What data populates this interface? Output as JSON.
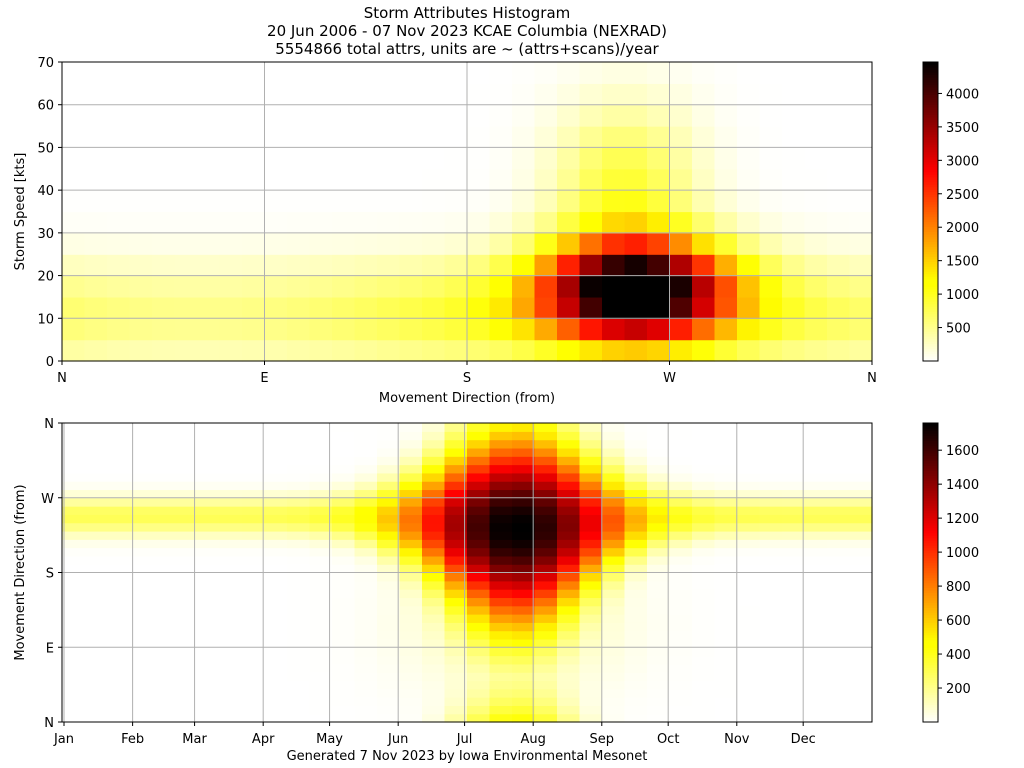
{
  "title_lines": [
    "Storm Attributes Histogram",
    "20 Jun 2006 - 07 Nov 2023 KCAE Columbia (NEXRAD)",
    "5554866 total attrs, units are ~ (attrs+scans)/year"
  ],
  "footer": "Generated 7 Nov 2023 by Iowa Environmental Mesonet",
  "colors": {
    "colormap": "hot_r",
    "gridline": "#b0b0b0"
  },
  "chart_data": [
    {
      "type": "heatmap",
      "xlabel": "Movement Direction (from)",
      "ylabel": "Storm Speed [kts]",
      "x_tick_labels": [
        "N",
        "E",
        "S",
        "W",
        "N"
      ],
      "x_tick_values": [
        0,
        90,
        180,
        270,
        360
      ],
      "xlim": [
        0,
        360
      ],
      "y_tick_labels": [
        "0",
        "10",
        "20",
        "30",
        "40",
        "50",
        "60",
        "70"
      ],
      "y_tick_values": [
        0,
        10,
        20,
        30,
        40,
        50,
        60,
        70
      ],
      "ylim": [
        0,
        70
      ],
      "grid": true,
      "x_bins": 36,
      "y_bins": 14,
      "colorbar_ticks": [
        500,
        1000,
        1500,
        2000,
        2500,
        3000,
        3500,
        4000
      ],
      "colorbar_range": [
        0,
        4470
      ],
      "peak": {
        "direction": 255,
        "speed": 17.5,
        "value": 4470
      },
      "description_of_values": "Speeds concentrate between 5 and 25 kts; strongest counts from SW-W (225-285 deg) at 15-22 kts."
    },
    {
      "type": "heatmap",
      "xlabel": "",
      "ylabel": "Movement Direction (from)",
      "x_tick_labels": [
        "Jan",
        "Feb",
        "Mar",
        "Apr",
        "May",
        "Jun",
        "Jul",
        "Aug",
        "Sep",
        "Oct",
        "Nov",
        "Dec"
      ],
      "y_tick_labels": [
        "N",
        "E",
        "S",
        "W",
        "N"
      ],
      "y_tick_values": [
        0,
        90,
        180,
        270,
        360
      ],
      "ylim": [
        0,
        360
      ],
      "grid": true,
      "x_bins": 36,
      "y_bins": 36,
      "colorbar_ticks": [
        200,
        400,
        600,
        800,
        1000,
        1200,
        1400,
        1600
      ],
      "colorbar_range": [
        0,
        1760
      ],
      "peak": {
        "month": "Aug",
        "direction": 255,
        "value": 1760
      },
      "description_of_values": "Summer (Jun-Aug) dominates with movement from W-SW; winter/spring bands weaker near WSW."
    }
  ]
}
